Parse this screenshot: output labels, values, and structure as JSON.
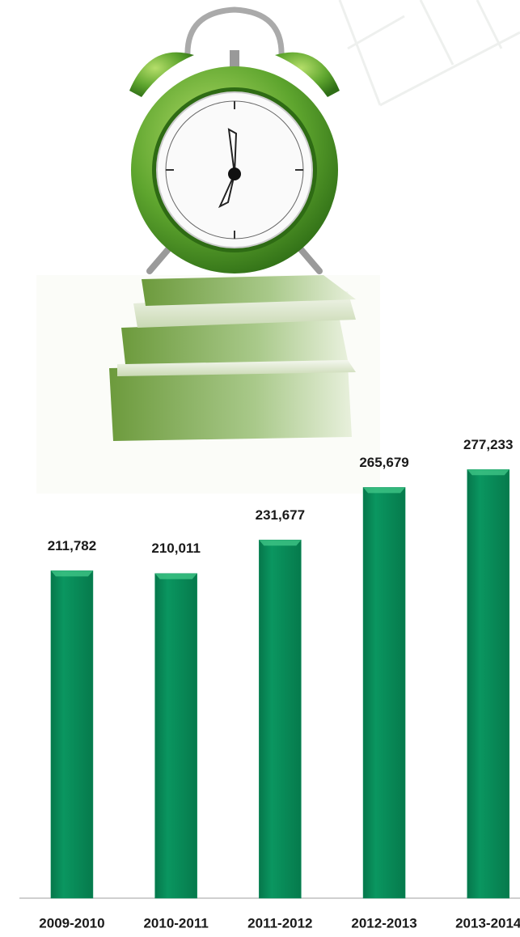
{
  "chart_data": {
    "type": "bar",
    "categories": [
      "2009-2010",
      "2010-2011",
      "2011-2012",
      "2012-2013",
      "2013-2014"
    ],
    "values": [
      211782,
      210011,
      231677,
      265679,
      277233
    ],
    "value_labels": [
      "211,782",
      "210,011",
      "231,677",
      "265,679",
      "277,233"
    ],
    "color": "#078c58",
    "ylim": [
      0,
      280000
    ]
  }
}
